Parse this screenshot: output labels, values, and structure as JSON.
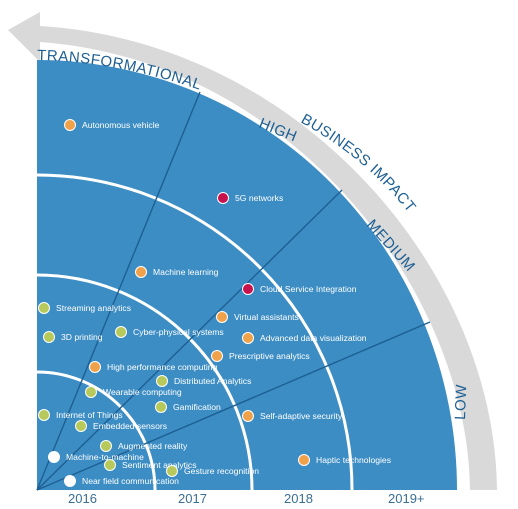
{
  "impact_levels": {
    "transformational": "TRANSFORMATIONAL",
    "high": "HIGH",
    "business_impact": "BUSINESS IMPACT",
    "medium": "MEDIUM",
    "low": "LOW"
  },
  "years": [
    "2016",
    "2017",
    "2018",
    "2019+"
  ],
  "colors": {
    "background_quadrant": "#3c8dc4",
    "ring_line": "#ffffff",
    "arrow": "#d9d9d9",
    "dot_orange": "#f0a24a",
    "dot_red": "#c8124d",
    "dot_yellow_green": "#b7c95a",
    "dot_white": "#ffffff"
  },
  "technologies": [
    {
      "label": "Autonomous vehicle",
      "color": "dot_orange"
    },
    {
      "label": "5G networks",
      "color": "dot_red"
    },
    {
      "label": "Machine learning",
      "color": "dot_orange"
    },
    {
      "label": "Cloud Service Integration",
      "color": "dot_red"
    },
    {
      "label": "Streaming analytics",
      "color": "dot_yellow_green"
    },
    {
      "label": "Virtual assistants",
      "color": "dot_orange"
    },
    {
      "label": "3D printing",
      "color": "dot_yellow_green"
    },
    {
      "label": "Cyber-physical systems",
      "color": "dot_yellow_green"
    },
    {
      "label": "Advanced data visualization",
      "color": "dot_orange"
    },
    {
      "label": "Prescriptive analytics",
      "color": "dot_orange"
    },
    {
      "label": "High performance computing",
      "color": "dot_orange"
    },
    {
      "label": "Distributed Analytics",
      "color": "dot_yellow_green"
    },
    {
      "label": "Wearable computing",
      "color": "dot_yellow_green"
    },
    {
      "label": "Gamification",
      "color": "dot_yellow_green"
    },
    {
      "label": "Internet of Things",
      "color": "dot_yellow_green"
    },
    {
      "label": "Self-adaptive security",
      "color": "dot_orange"
    },
    {
      "label": "Embedded sensors",
      "color": "dot_yellow_green"
    },
    {
      "label": "Augmented reality",
      "color": "dot_yellow_green"
    },
    {
      "label": "Machine-to-machine",
      "color": "dot_white"
    },
    {
      "label": "Sentiment analytics",
      "color": "dot_yellow_green"
    },
    {
      "label": "Haptic technologies",
      "color": "dot_orange"
    },
    {
      "label": "Gesture recognition",
      "color": "dot_yellow_green"
    },
    {
      "label": "Near field communication",
      "color": "dot_white"
    }
  ]
}
